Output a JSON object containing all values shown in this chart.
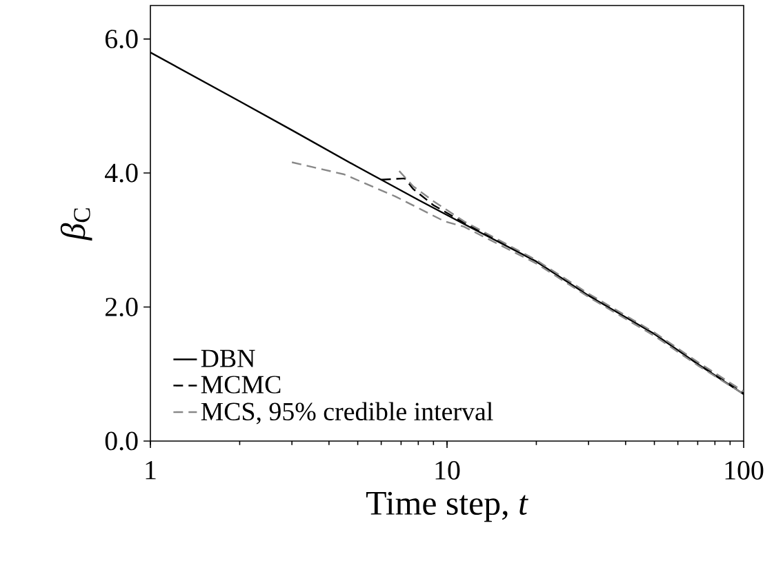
{
  "chart_data": {
    "type": "line",
    "xlabel": "Time step, *t*",
    "ylabel": "*β*$_{C}$",
    "log": "x",
    "xlim": [
      1,
      100
    ],
    "xticks": [
      1,
      10,
      100
    ],
    "ylim": [
      0,
      6.5
    ],
    "yticks": [
      {
        "value": 0,
        "label": "0.0"
      },
      {
        "value": 2,
        "label": "2.0"
      },
      {
        "value": 4,
        "label": "4.0"
      },
      {
        "value": 6,
        "label": "6.0"
      }
    ],
    "grid": false,
    "legend": "bottom left",
    "marker": "none",
    "series": [
      {
        "name": "DBN",
        "color": "#000000",
        "line_style": "solid",
        "x": [
          1,
          2,
          3,
          5,
          6,
          8,
          11.4,
          20,
          30,
          50,
          70,
          100
        ],
        "values": [
          5.8,
          5.07,
          4.64,
          4.09,
          3.9,
          3.6,
          3.24,
          2.68,
          2.17,
          1.6,
          1.15,
          0.7
        ]
      },
      {
        "name": "MCMC",
        "color": "#000000",
        "line_style": "dashed",
        "x": [
          6,
          7.2,
          7.7,
          9,
          11.4,
          20,
          30,
          50,
          70,
          100
        ],
        "values": [
          3.9,
          3.92,
          3.76,
          3.52,
          3.26,
          2.68,
          2.18,
          1.6,
          1.16,
          0.71
        ]
      },
      {
        "name": "MCS, 95% credible interval",
        "color": "#888888",
        "line_style": "dashed",
        "x": [
          3,
          4.5,
          6.7,
          9.8,
          11.4,
          20,
          30,
          50,
          70,
          100
        ],
        "values": [
          4.16,
          3.98,
          3.65,
          3.28,
          3.2,
          2.65,
          2.15,
          1.57,
          1.13,
          0.7
        ]
      },
      {
        "color": "#888888",
        "line_style": "dashed",
        "x": [
          6.9,
          7.7,
          9,
          11.4,
          20,
          30,
          50,
          70,
          100
        ],
        "values": [
          4.03,
          3.8,
          3.58,
          3.28,
          2.7,
          2.2,
          1.62,
          1.18,
          0.74
        ]
      }
    ]
  }
}
